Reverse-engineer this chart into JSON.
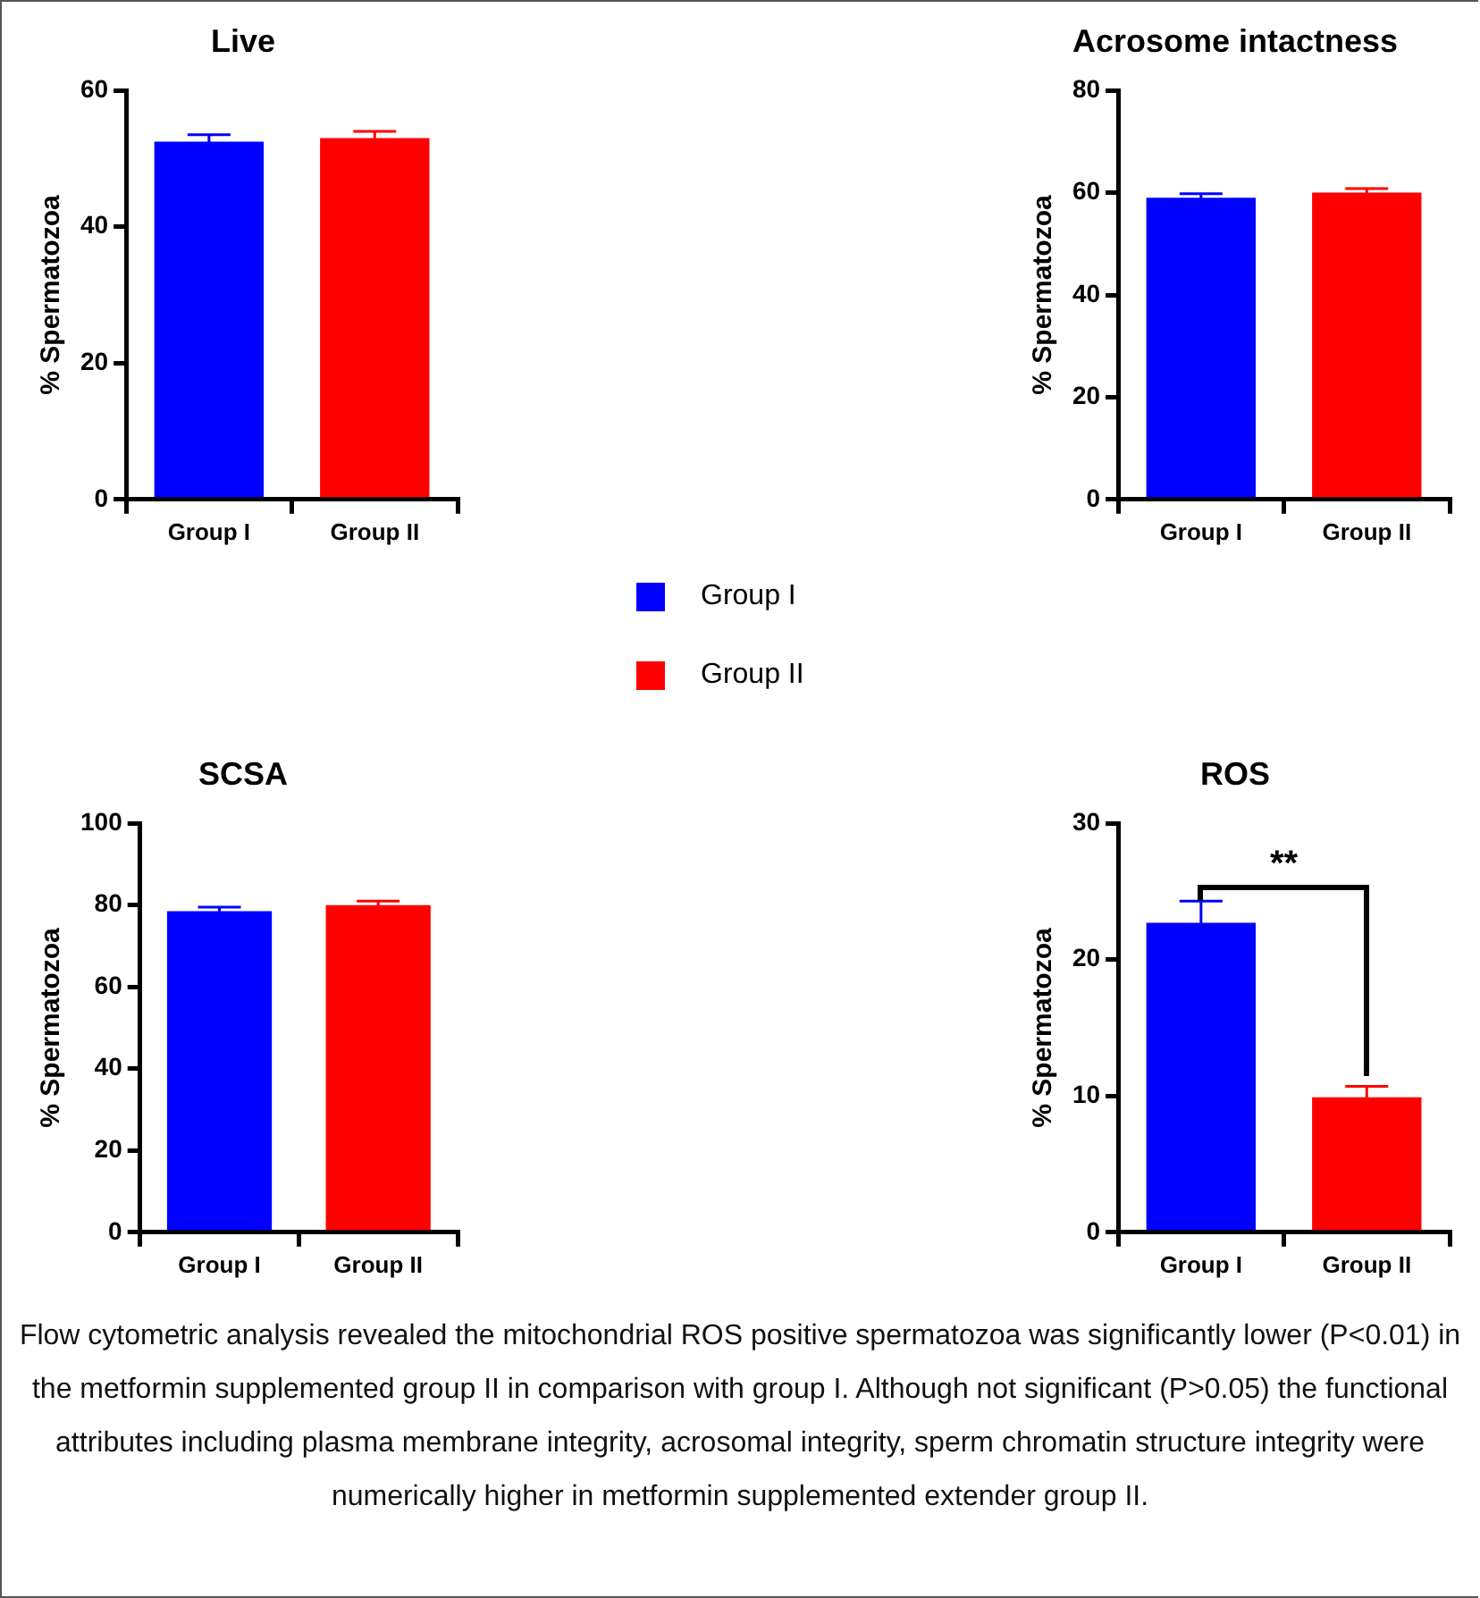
{
  "chart_data": [
    {
      "type": "bar",
      "title": "Live",
      "ylabel": "% Spermatozoa",
      "categories": [
        "Group I",
        "Group II"
      ],
      "ylim": [
        0,
        60
      ],
      "yticks": [
        0,
        20,
        40,
        60
      ],
      "grid": false,
      "legend": "bottom",
      "series": [
        {
          "name": "Group I",
          "color": "#0000ff",
          "values": [
            52.5,
            null
          ],
          "errors": [
            1,
            null
          ]
        },
        {
          "name": "Group II",
          "color": "#ff0000",
          "values": [
            null,
            53
          ],
          "errors": [
            null,
            1
          ]
        }
      ]
    },
    {
      "type": "bar",
      "title": "Acrosome intactness",
      "ylabel": "% Spermatozoa",
      "categories": [
        "Group I",
        "Group II"
      ],
      "ylim": [
        0,
        80
      ],
      "yticks": [
        0,
        20,
        40,
        60,
        80
      ],
      "grid": false,
      "series": [
        {
          "color": "#0000ff",
          "values": [
            59,
            null
          ],
          "errors": [
            0.8,
            null
          ]
        },
        {
          "color": "#ff0000",
          "values": [
            null,
            60
          ],
          "errors": [
            null,
            0.8
          ]
        }
      ]
    },
    {
      "type": "bar",
      "title": "SCSA",
      "ylabel": "% Spermatozoa",
      "categories": [
        "Group I",
        "Group II"
      ],
      "ylim": [
        0,
        100
      ],
      "yticks": [
        0,
        20,
        40,
        60,
        80,
        100
      ],
      "grid": false,
      "series": [
        {
          "color": "#0000ff",
          "values": [
            78.5,
            null
          ],
          "errors": [
            1,
            null
          ]
        },
        {
          "color": "#ff0000",
          "values": [
            null,
            80
          ],
          "errors": [
            null,
            1
          ]
        }
      ]
    },
    {
      "type": "bar",
      "title": "ROS",
      "ylabel": "% Spermatozoa",
      "categories": [
        "Group I",
        "Group II"
      ],
      "ylim": [
        0,
        30
      ],
      "yticks": [
        0,
        10,
        20,
        30
      ],
      "grid": false,
      "series": [
        {
          "color": "#0000ff",
          "values": [
            22.7,
            null
          ],
          "errors": [
            1.6,
            null
          ]
        },
        {
          "color": "#ff0000",
          "values": [
            null,
            9.9
          ],
          "errors": [
            null,
            0.8
          ]
        }
      ],
      "annotations": [
        "**",
        "Flow cytometric analysis revealed the mitochondrial ROS positive spermatozoa was significantly lower (P<0.01) in the metformin supplemented group II in comparison with group I. Although not significant (P>0.05) the functional attributes including plasma membrane integrity, acrosomal integrity, sperm chromatin structure integrity were numerically higher in metformin supplemented extender group II."
      ]
    }
  ]
}
